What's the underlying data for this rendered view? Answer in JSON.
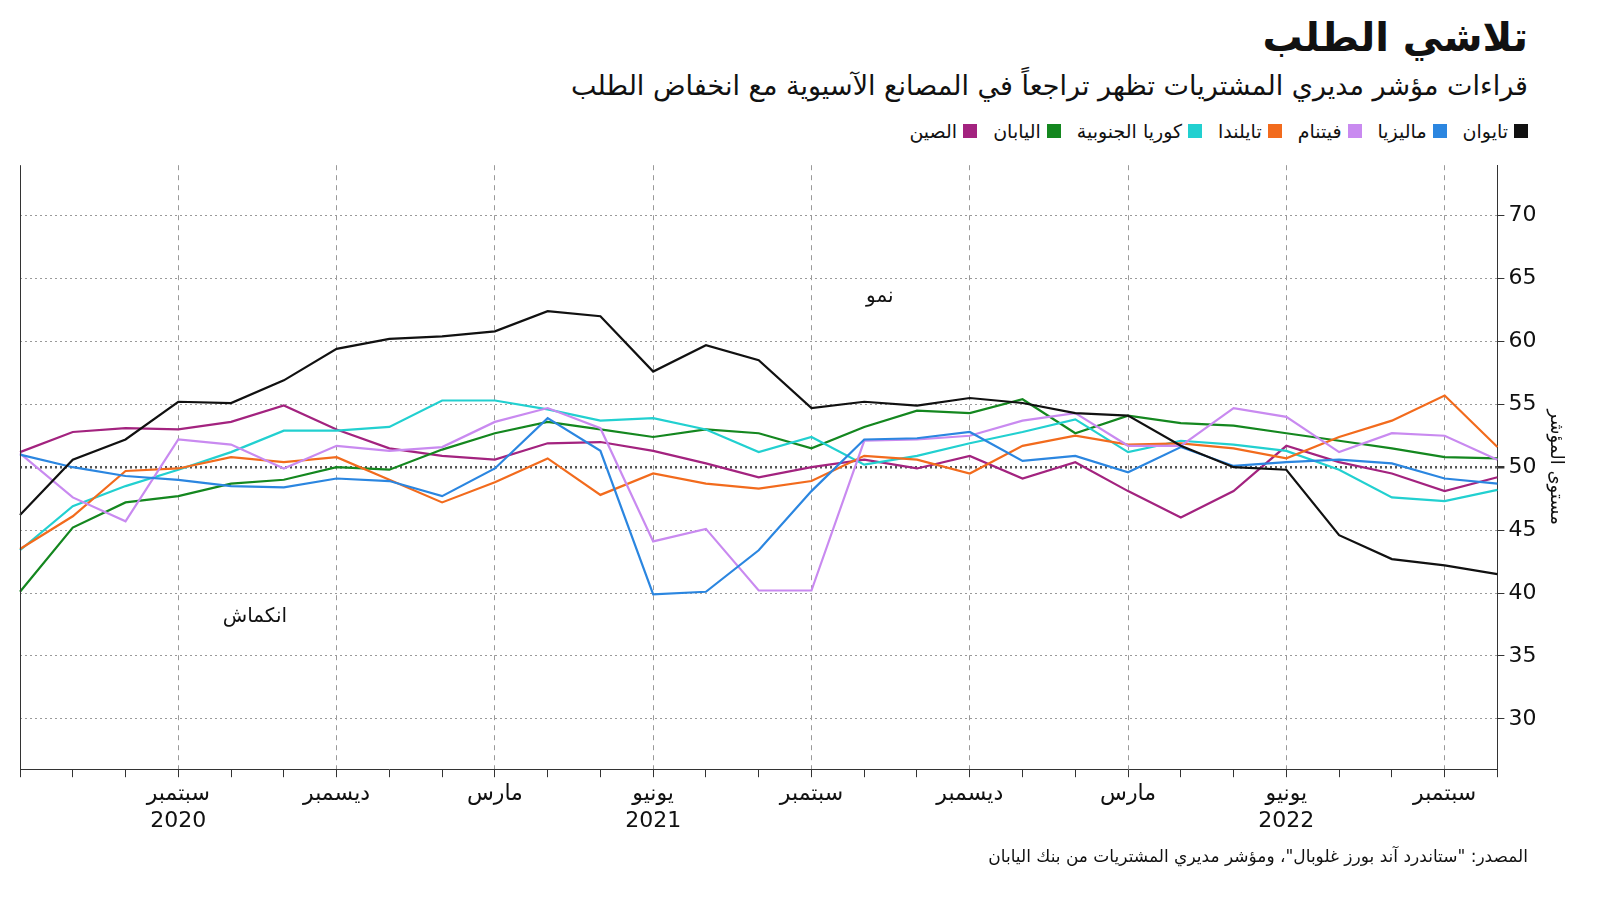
{
  "chart_data": {
    "type": "line",
    "title": "تلاشي الطلب",
    "subtitle": "قراءات مؤشر مديري المشتريات تظهر تراجعاً في المصانع الآسيوية مع انخفاض الطلب",
    "source": "المصدر: \"ستاندرد آند بورز غلوبال\"، ومؤشر مديري المشتريات من بنك اليابان",
    "y_label": "مستوى المؤشر",
    "annotations": [
      {
        "text": "نمو"
      },
      {
        "text": "انكماش"
      }
    ],
    "categories": [
      null,
      null,
      null,
      [
        "سبتمبر",
        "2020"
      ],
      null,
      null,
      "ديسمبر",
      null,
      null,
      "مارس",
      null,
      null,
      [
        "يونيو",
        "2021"
      ],
      null,
      null,
      "سبتمبر",
      null,
      null,
      "ديسمبر",
      null,
      null,
      "مارس",
      null,
      null,
      [
        "يونيو",
        "2022"
      ],
      null,
      null,
      "سبتمبر",
      null
    ],
    "series": [
      {
        "name": "تايوان",
        "color": "#111111",
        "values": [
          46.2,
          50.6,
          52.2,
          55.2,
          55.1,
          56.9,
          59.4,
          60.2,
          60.4,
          60.8,
          62.4,
          62.0,
          57.6,
          59.7,
          58.5,
          54.7,
          55.2,
          54.9,
          55.5,
          55.1,
          54.3,
          54.1,
          51.7,
          50.0,
          49.8,
          44.6,
          42.7,
          42.2,
          41.5
        ]
      },
      {
        "name": "ماليزيا",
        "color": "#2b86e0",
        "values": [
          51.0,
          50.0,
          49.3,
          49.0,
          48.5,
          48.4,
          49.1,
          48.9,
          47.7,
          49.9,
          53.9,
          51.3,
          39.9,
          40.1,
          43.4,
          48.1,
          52.2,
          52.3,
          52.8,
          50.5,
          50.9,
          49.6,
          51.6,
          50.1,
          50.4,
          50.6,
          50.3,
          49.1,
          48.7
        ]
      },
      {
        "name": "فيتنام",
        "color": "#c98af0",
        "values": [
          51.1,
          47.6,
          45.7,
          52.2,
          51.8,
          49.9,
          51.7,
          51.3,
          51.6,
          53.6,
          54.7,
          53.1,
          44.1,
          45.1,
          40.2,
          40.2,
          52.1,
          52.2,
          52.5,
          53.7,
          54.3,
          51.7,
          51.7,
          54.7,
          54.0,
          51.2,
          52.7,
          52.5,
          50.6
        ]
      },
      {
        "name": "تايلندا",
        "color": "#f26b1d",
        "values": [
          43.5,
          46.1,
          49.7,
          49.9,
          50.8,
          50.4,
          50.8,
          49.0,
          47.2,
          48.8,
          50.7,
          47.8,
          49.5,
          48.7,
          48.3,
          48.9,
          50.9,
          50.6,
          49.5,
          51.7,
          52.5,
          51.8,
          51.9,
          51.5,
          50.7,
          52.4,
          53.7,
          55.7,
          51.6
        ]
      },
      {
        "name": "كوريا الجنوبية",
        "color": "#22d0d0",
        "values": [
          43.4,
          46.9,
          48.5,
          49.8,
          51.2,
          52.9,
          52.9,
          53.2,
          55.3,
          55.3,
          54.6,
          53.7,
          53.9,
          53.0,
          51.2,
          52.4,
          50.2,
          50.9,
          51.9,
          52.8,
          53.8,
          51.2,
          52.1,
          51.8,
          51.3,
          49.8,
          47.6,
          47.3,
          48.2
        ]
      },
      {
        "name": "اليابان",
        "color": "#14871f",
        "values": [
          40.1,
          45.2,
          47.2,
          47.7,
          48.7,
          49.0,
          50.0,
          49.8,
          51.4,
          52.7,
          53.6,
          53.0,
          52.4,
          53.0,
          52.7,
          51.5,
          53.2,
          54.5,
          54.3,
          55.4,
          52.7,
          54.1,
          53.5,
          53.3,
          52.7,
          52.1,
          51.5,
          50.8,
          50.7
        ]
      },
      {
        "name": "الصين",
        "color": "#a3237f",
        "values": [
          51.2,
          52.8,
          53.1,
          53.0,
          53.6,
          54.9,
          53.0,
          51.5,
          50.9,
          50.6,
          51.9,
          52.0,
          51.3,
          50.3,
          49.2,
          50.0,
          50.6,
          49.9,
          50.9,
          49.1,
          50.4,
          48.1,
          46.0,
          48.1,
          51.7,
          50.4,
          49.5,
          48.1,
          49.2
        ]
      }
    ],
    "reference_line": 50,
    "ylim": [
      26,
      74
    ],
    "yticks": [
      30,
      35,
      40,
      45,
      50,
      55,
      60,
      65,
      70
    ],
    "grid": true,
    "legend": "top-right"
  }
}
